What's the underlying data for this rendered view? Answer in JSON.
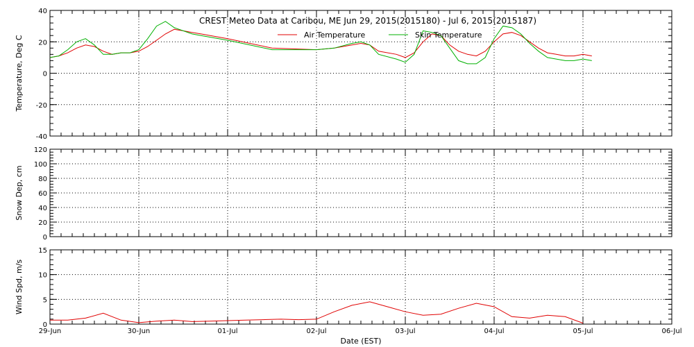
{
  "title": "CREST Meteo Data at Caribou, ME   Jun 29, 2015(2015180) - Jul  6, 2015(2015187)",
  "x_axis": {
    "label": "Date (EST)",
    "ticks": [
      "29-Jun",
      "30-Jun",
      "01-Jul",
      "02-Jul",
      "03-Jul",
      "04-Jul",
      "05-Jul",
      "06-Jul"
    ]
  },
  "colors": {
    "air": "#e00000",
    "skin": "#00b000",
    "wind": "#e00000",
    "axis": "#000000",
    "grid": "#000000"
  },
  "chart_data": [
    {
      "type": "line",
      "ylabel": "Temperature, Deg C",
      "ylim": [
        -40,
        40
      ],
      "yticks": [
        -40,
        -20,
        0,
        20,
        40
      ],
      "x_unit": "days since 29-Jun 00:00",
      "xlim": [
        0,
        7
      ],
      "grid": true,
      "legend": "top-center",
      "series": [
        {
          "name": "Air Temperature",
          "color": "#e00000",
          "x": [
            0,
            0.1,
            0.2,
            0.3,
            0.4,
            0.5,
            0.6,
            0.7,
            0.8,
            0.9,
            1.0,
            1.1,
            1.2,
            1.3,
            1.4,
            1.5,
            1.6,
            1.7,
            2.0,
            2.5,
            3.0,
            3.2,
            3.4,
            3.5,
            3.6,
            3.7,
            3.9,
            4.0,
            4.1,
            4.2,
            4.3,
            4.4,
            4.5,
            4.6,
            4.7,
            4.8,
            4.9,
            5.0,
            5.1,
            5.2,
            5.3,
            5.4,
            5.5,
            5.6,
            5.7,
            5.8,
            5.9,
            6.0,
            6.1
          ],
          "values": [
            10,
            11,
            13,
            16,
            18,
            17,
            14,
            12,
            13,
            13,
            14,
            17,
            21,
            25,
            28,
            27,
            26,
            25,
            22,
            16,
            15,
            16,
            18,
            19,
            18,
            14,
            12,
            10,
            13,
            20,
            25,
            24,
            18,
            14,
            12,
            11,
            14,
            20,
            25,
            26,
            24,
            20,
            16,
            13,
            12,
            11,
            11,
            12,
            11
          ]
        },
        {
          "name": "Skin Temperature",
          "color": "#00b000",
          "x": [
            0,
            0.1,
            0.2,
            0.3,
            0.4,
            0.5,
            0.6,
            0.7,
            0.8,
            0.9,
            1.0,
            1.1,
            1.2,
            1.3,
            1.4,
            1.5,
            1.6,
            1.7,
            2.0,
            2.5,
            3.0,
            3.2,
            3.4,
            3.5,
            3.6,
            3.7,
            3.9,
            4.0,
            4.1,
            4.2,
            4.3,
            4.4,
            4.5,
            4.6,
            4.7,
            4.8,
            4.9,
            5.0,
            5.1,
            5.2,
            5.3,
            5.4,
            5.5,
            5.6,
            5.7,
            5.8,
            5.9,
            6.0,
            6.1
          ],
          "values": [
            10,
            11,
            15,
            20,
            22,
            18,
            12,
            12,
            13,
            13,
            15,
            22,
            30,
            33,
            29,
            27,
            25,
            24,
            21,
            15,
            15,
            16,
            19,
            20,
            18,
            12,
            9,
            7,
            12,
            27,
            26,
            24,
            16,
            8,
            6,
            6,
            10,
            22,
            30,
            29,
            25,
            19,
            14,
            10,
            9,
            8,
            8,
            9,
            8
          ]
        }
      ]
    },
    {
      "type": "line",
      "ylabel": "Snow Dep, cm",
      "ylim": [
        0,
        120
      ],
      "yticks": [
        0,
        20,
        40,
        60,
        80,
        100,
        120
      ],
      "xlim": [
        0,
        7
      ],
      "grid": true,
      "series": []
    },
    {
      "type": "line",
      "ylabel": "Wind Spd, m/s",
      "ylim": [
        0,
        15
      ],
      "yticks": [
        0,
        5,
        10,
        15
      ],
      "xlim": [
        0,
        7
      ],
      "grid": true,
      "series": [
        {
          "color": "#e00000",
          "x": [
            0,
            0.2,
            0.4,
            0.6,
            0.8,
            1.0,
            1.2,
            1.4,
            1.6,
            1.8,
            2.0,
            2.2,
            2.4,
            2.6,
            2.8,
            3.0,
            3.2,
            3.4,
            3.6,
            3.8,
            4.0,
            4.2,
            4.4,
            4.6,
            4.8,
            5.0,
            5.2,
            5.4,
            5.6,
            5.8,
            6.0
          ],
          "values": [
            0.8,
            0.8,
            1.2,
            2.2,
            0.8,
            0.3,
            0.6,
            0.8,
            0.5,
            0.6,
            0.7,
            0.8,
            0.9,
            1.0,
            0.9,
            1.0,
            2.5,
            3.8,
            4.5,
            3.5,
            2.5,
            1.8,
            2.0,
            3.2,
            4.2,
            3.5,
            1.5,
            1.2,
            1.8,
            1.5,
            0.2
          ]
        }
      ]
    }
  ]
}
